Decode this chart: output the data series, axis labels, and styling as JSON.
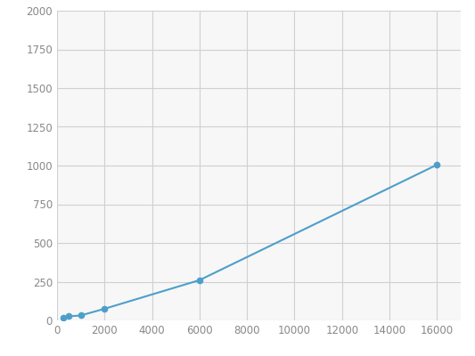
{
  "x": [
    250,
    500,
    1000,
    2000,
    6000,
    16000
  ],
  "y": [
    20,
    26,
    32,
    75,
    260,
    1005
  ],
  "line_color": "#4d9fca",
  "marker_color": "#4d9fca",
  "marker_size": 4.5,
  "line_width": 1.5,
  "xlim": [
    0,
    17000
  ],
  "ylim": [
    0,
    2000
  ],
  "xticks": [
    0,
    2000,
    4000,
    6000,
    8000,
    10000,
    12000,
    14000,
    16000
  ],
  "yticks": [
    0,
    250,
    500,
    750,
    1000,
    1250,
    1500,
    1750,
    2000
  ],
  "grid_color": "#d0d0d0",
  "background_color": "#ffffff",
  "plot_bg_color": "#f7f7f7",
  "tick_fontsize": 8.5,
  "tick_color": "#888888"
}
